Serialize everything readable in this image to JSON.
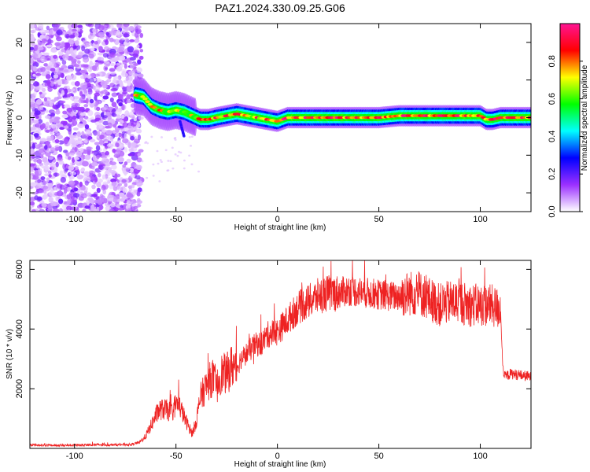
{
  "title": "PAZ1.2024.330.09.25.G06",
  "chart_data": [
    {
      "type": "heatmap",
      "xlabel": "Height of straight line (km)",
      "ylabel": "Frequency (Hz)",
      "xlim": [
        -122,
        125
      ],
      "ylim": [
        -25,
        25
      ],
      "xticks": [
        -100,
        -50,
        0,
        50,
        100
      ],
      "yticks": [
        -20,
        -10,
        0,
        10,
        20
      ],
      "colorbar": {
        "label": "Normalized spectral amplitude",
        "range": [
          0,
          1
        ],
        "ticks": [
          0.0,
          0.2,
          0.4,
          0.6,
          0.8
        ],
        "colormap": [
          "#ffffff",
          "#9b30ff",
          "#0000ff",
          "#00ffff",
          "#00ff00",
          "#ffff00",
          "#ff0000",
          "#ff1493"
        ]
      },
      "ridge": {
        "x": [
          -70,
          -66,
          -62,
          -58,
          -54,
          -50,
          -46,
          -42,
          -38,
          -34,
          -30,
          -25,
          -20,
          -15,
          -10,
          -5,
          0,
          5,
          10,
          20,
          30,
          40,
          50,
          60,
          70,
          80,
          90,
          100,
          103,
          106,
          110,
          115,
          120,
          125
        ],
        "freq": [
          6,
          5.5,
          3,
          2,
          1.5,
          2,
          1.5,
          0.5,
          -0.5,
          -0.5,
          0,
          0.5,
          1,
          0.5,
          0,
          -0.5,
          -1,
          0,
          0,
          0,
          0,
          0,
          0,
          0.5,
          0.5,
          0.5,
          0.5,
          0.5,
          -0.5,
          -0.5,
          0,
          0,
          0,
          0
        ]
      },
      "noise_region_x": [
        -122,
        -67
      ]
    },
    {
      "type": "line",
      "xlabel": "Height of straight line (km)",
      "ylabel": "SNR (10 * v/v)",
      "xlim": [
        -122,
        125
      ],
      "ylim": [
        0,
        6300
      ],
      "xticks": [
        -100,
        -50,
        0,
        50,
        100
      ],
      "yticks": [
        2000,
        4000,
        6000
      ],
      "color": "#ee2222",
      "series": [
        {
          "x": [
            -122,
            -110,
            -100,
            -90,
            -80,
            -72,
            -68,
            -65,
            -62,
            -60,
            -58,
            -55,
            -52,
            -50,
            -48,
            -45,
            -42,
            -40,
            -38,
            -35,
            -32,
            -30,
            -28,
            -25,
            -22,
            -20,
            -18,
            -15,
            -12,
            -10,
            -8,
            -5,
            -2,
            0,
            5,
            10,
            15,
            20,
            25,
            30,
            35,
            40,
            45,
            50,
            55,
            60,
            65,
            70,
            75,
            80,
            85,
            90,
            95,
            100,
            105,
            108,
            110,
            111,
            112,
            115,
            120,
            125
          ],
          "values": [
            120,
            100,
            110,
            120,
            120,
            130,
            200,
            400,
            800,
            1100,
            1300,
            1300,
            1200,
            1500,
            1400,
            900,
            500,
            900,
            1700,
            2100,
            2400,
            2000,
            2500,
            2500,
            2800,
            2700,
            3000,
            3200,
            3400,
            3500,
            3500,
            3800,
            3900,
            3900,
            4300,
            4700,
            4900,
            5100,
            5200,
            5200,
            5300,
            5250,
            5200,
            5150,
            5100,
            5100,
            5200,
            5200,
            5000,
            4800,
            4900,
            4900,
            4800,
            4800,
            4800,
            4700,
            4700,
            2800,
            2400,
            2500,
            2450,
            2400
          ]
        }
      ]
    }
  ]
}
